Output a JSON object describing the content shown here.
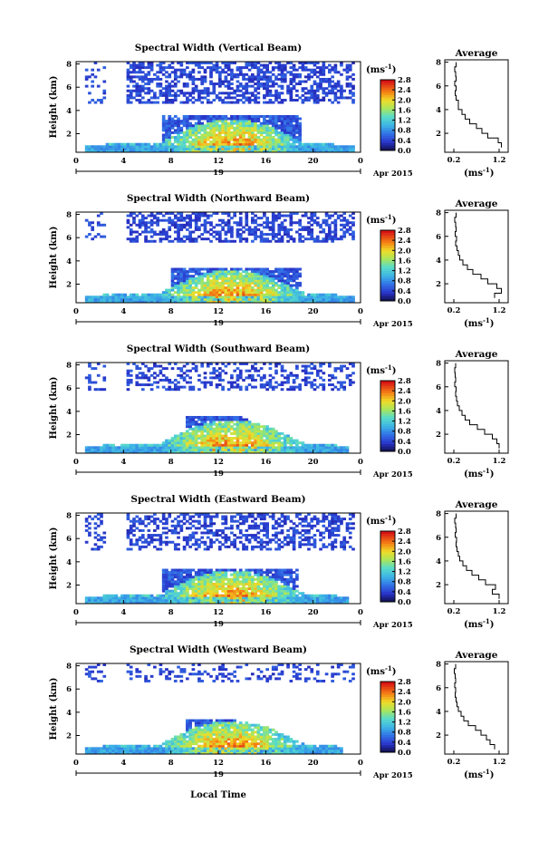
{
  "chart_data": {
    "type": "heatmap",
    "xlabel": "Local Time",
    "x_ticks": [
      "0",
      "4",
      "8",
      "12",
      "16",
      "20",
      "0"
    ],
    "date_tick": "19",
    "date_label": "Apr 2015",
    "xlim": [
      0,
      24
    ],
    "ylabel": "Height (km)",
    "y_ticks": [
      "2",
      "4",
      "6",
      "8"
    ],
    "ylim": [
      0.4,
      8.2
    ],
    "colorbar": {
      "unit": "(ms",
      "unit_exp": "-1",
      "unit_close": ")",
      "range": [
        0,
        2.8
      ],
      "ticks": [
        "0.0",
        "0.4",
        "0.8",
        "1.2",
        "1.6",
        "2.0",
        "2.4",
        "2.8"
      ]
    },
    "average_panel": {
      "title": "Average",
      "xlabel": "(ms",
      "xlabel_exp": "-1",
      "xlabel_close": ")",
      "x_ticks": [
        "0.2",
        "1.2"
      ],
      "xlim": [
        0,
        1.4
      ],
      "y_ticks": [
        "2",
        "4",
        "6",
        "8"
      ],
      "ylim": [
        0.4,
        8.2
      ]
    },
    "panels": [
      {
        "title": "Spectral Width (Vertical Beam)",
        "average_profile": {
          "height": [
            1.0,
            1.4,
            1.8,
            2.2,
            2.6,
            3.0,
            3.4,
            3.8,
            4.2,
            4.6,
            5.0,
            5.4,
            5.8,
            6.2,
            6.6,
            7.0,
            7.4,
            7.8
          ],
          "width": [
            1.25,
            1.18,
            0.95,
            0.82,
            0.7,
            0.55,
            0.45,
            0.38,
            0.3,
            0.3,
            0.25,
            0.23,
            0.25,
            0.22,
            0.25,
            0.24,
            0.22,
            0.25
          ]
        }
      },
      {
        "title": "Spectral Width (Northward Beam)",
        "average_profile": {
          "height": [
            1.0,
            1.4,
            1.8,
            2.2,
            2.6,
            3.0,
            3.4,
            3.8,
            4.2,
            4.6,
            5.0,
            5.4,
            5.8,
            6.2,
            6.6,
            7.0,
            7.4,
            7.8
          ],
          "width": [
            1.1,
            1.25,
            1.15,
            0.95,
            0.8,
            0.62,
            0.5,
            0.4,
            0.33,
            0.3,
            0.27,
            0.24,
            0.26,
            0.23,
            0.25,
            0.24,
            0.22,
            0.25
          ]
        }
      },
      {
        "title": "Spectral Width (Southward Beam)",
        "average_profile": {
          "height": [
            1.0,
            1.4,
            1.8,
            2.2,
            2.6,
            3.0,
            3.4,
            3.8,
            4.2,
            4.6,
            5.0,
            5.4,
            5.8,
            6.2,
            6.6,
            7.0,
            7.4,
            7.8
          ],
          "width": [
            1.2,
            1.15,
            1.05,
            0.88,
            0.72,
            0.55,
            0.45,
            0.38,
            0.32,
            0.28,
            0.26,
            0.24,
            0.25,
            0.22,
            0.24,
            0.23,
            0.22,
            0.24
          ]
        }
      },
      {
        "title": "Spectral Width (Eastward Beam)",
        "average_profile": {
          "height": [
            1.0,
            1.4,
            1.8,
            2.2,
            2.6,
            3.0,
            3.4,
            3.8,
            4.2,
            4.6,
            5.0,
            5.4,
            5.8,
            6.2,
            6.6,
            7.0,
            7.4,
            7.8
          ],
          "width": [
            1.2,
            1.05,
            1.12,
            0.9,
            0.75,
            0.6,
            0.48,
            0.4,
            0.33,
            0.3,
            0.27,
            0.25,
            0.26,
            0.23,
            0.25,
            0.24,
            0.22,
            0.25
          ]
        }
      },
      {
        "title": "Spectral Width (Westward Beam)",
        "average_profile": {
          "height": [
            1.0,
            1.4,
            1.8,
            2.2,
            2.6,
            3.0,
            3.4,
            3.8,
            4.2,
            4.6,
            5.0,
            5.4,
            5.8,
            6.2,
            6.6,
            7.0,
            7.4,
            7.8
          ],
          "width": [
            1.1,
            1.0,
            0.92,
            0.8,
            0.68,
            0.52,
            0.42,
            0.36,
            0.3,
            0.27,
            0.25,
            0.23,
            0.24,
            0.22,
            0.24,
            0.23,
            0.21,
            0.24
          ]
        }
      }
    ]
  }
}
